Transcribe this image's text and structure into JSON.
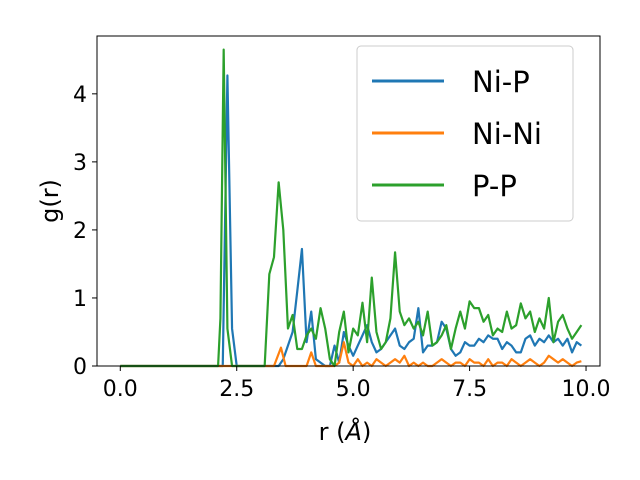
{
  "chart_data": {
    "type": "line",
    "xlabel": "r (",
    "xlabel_unit": "Å",
    "xlabel_close": ")",
    "ylabel": "g(r)",
    "xlim": [
      -0.5,
      10.3
    ],
    "ylim": [
      0,
      4.85
    ],
    "xticks": [
      0.0,
      2.5,
      5.0,
      7.5,
      10.0
    ],
    "xtick_labels": [
      "0.0",
      "2.5",
      "5.0",
      "7.5",
      "10.0"
    ],
    "yticks": [
      0,
      1,
      2,
      3,
      4
    ],
    "ytick_labels": [
      "0",
      "1",
      "2",
      "3",
      "4"
    ],
    "grid": false,
    "legend_position": "top-right",
    "series": [
      {
        "name": "Ni-P",
        "color": "#1f77b4",
        "x": [
          0,
          2.1,
          2.2,
          2.3,
          2.4,
          2.5,
          2.6,
          3.2,
          3.3,
          3.4,
          3.5,
          3.6,
          3.7,
          3.8,
          3.9,
          4.0,
          4.1,
          4.2,
          4.3,
          4.4,
          4.5,
          4.6,
          4.7,
          4.8,
          4.9,
          5.0,
          5.1,
          5.2,
          5.3,
          5.4,
          5.5,
          5.6,
          5.7,
          5.8,
          5.9,
          6.0,
          6.1,
          6.2,
          6.3,
          6.4,
          6.5,
          6.6,
          6.7,
          6.8,
          6.9,
          7.0,
          7.1,
          7.2,
          7.3,
          7.4,
          7.5,
          7.6,
          7.7,
          7.8,
          7.9,
          8.0,
          8.1,
          8.2,
          8.3,
          8.4,
          8.5,
          8.6,
          8.7,
          8.8,
          8.9,
          9.0,
          9.1,
          9.2,
          9.3,
          9.4,
          9.5,
          9.6,
          9.7,
          9.8,
          9.9
        ],
        "y": [
          0,
          0,
          0,
          4.27,
          0.55,
          0,
          0,
          0,
          0,
          0,
          0.1,
          0.3,
          0.5,
          1.1,
          1.72,
          0.35,
          0.8,
          0.1,
          0.05,
          0,
          0,
          0.3,
          0.05,
          0.5,
          0.3,
          0.15,
          0.3,
          0.45,
          0.6,
          0.35,
          0.2,
          0.25,
          0.35,
          0.45,
          0.55,
          0.3,
          0.25,
          0.35,
          0.4,
          0.85,
          0.2,
          0.3,
          0.3,
          0.35,
          0.65,
          0.55,
          0.25,
          0.15,
          0.2,
          0.35,
          0.3,
          0.3,
          0.4,
          0.35,
          0.45,
          0.4,
          0.4,
          0.25,
          0.35,
          0.3,
          0.2,
          0.2,
          0.4,
          0.45,
          0.3,
          0.4,
          0.35,
          0.45,
          0.35,
          0.4,
          0.3,
          0.4,
          0.2,
          0.35,
          0.3
        ]
      },
      {
        "name": "Ni-Ni",
        "color": "#ff7f0e",
        "x": [
          0,
          3.3,
          3.45,
          3.55,
          3.7,
          3.9,
          4.0,
          4.1,
          4.2,
          4.3,
          4.4,
          4.5,
          4.6,
          4.7,
          4.8,
          4.9,
          5.0,
          5.1,
          5.2,
          5.3,
          5.4,
          5.5,
          5.6,
          5.7,
          5.8,
          5.9,
          6.0,
          6.1,
          6.2,
          6.3,
          6.4,
          6.5,
          6.6,
          6.7,
          6.8,
          6.9,
          7.0,
          7.1,
          7.2,
          7.3,
          7.4,
          7.5,
          7.6,
          7.7,
          7.8,
          7.9,
          8.0,
          8.1,
          8.2,
          8.3,
          8.4,
          8.5,
          8.6,
          8.7,
          8.8,
          8.9,
          9.0,
          9.1,
          9.2,
          9.3,
          9.4,
          9.5,
          9.6,
          9.7,
          9.8,
          9.9
        ],
        "y": [
          0,
          0,
          0.27,
          0,
          0,
          0,
          0,
          0.2,
          0,
          0,
          0,
          0,
          0,
          0.05,
          0.35,
          0.05,
          0,
          0.1,
          0,
          0.05,
          0,
          0.1,
          0.05,
          0,
          0.05,
          0.1,
          0.05,
          0.15,
          0,
          0.05,
          0,
          0.05,
          0,
          0,
          0.05,
          0.1,
          0.05,
          0,
          0.05,
          0.05,
          0,
          0.1,
          0.05,
          0.05,
          0,
          0.1,
          0,
          0.05,
          0.05,
          0,
          0.1,
          0.05,
          0,
          0.05,
          0.1,
          0.05,
          0,
          0.05,
          0.15,
          0.1,
          0.05,
          0.1,
          0.05,
          0,
          0.05,
          0.07
        ]
      },
      {
        "name": "P-P",
        "color": "#2ca02c",
        "x": [
          0,
          2.1,
          2.15,
          2.22,
          2.3,
          2.4,
          2.5,
          3.0,
          3.1,
          3.2,
          3.3,
          3.4,
          3.5,
          3.6,
          3.7,
          3.8,
          3.9,
          4.0,
          4.1,
          4.2,
          4.3,
          4.4,
          4.5,
          4.6,
          4.7,
          4.8,
          4.9,
          5.0,
          5.1,
          5.2,
          5.3,
          5.4,
          5.5,
          5.6,
          5.7,
          5.8,
          5.9,
          6.0,
          6.1,
          6.2,
          6.3,
          6.4,
          6.5,
          6.6,
          6.7,
          6.8,
          6.9,
          7.0,
          7.1,
          7.2,
          7.3,
          7.4,
          7.5,
          7.6,
          7.7,
          7.8,
          7.9,
          8.0,
          8.1,
          8.2,
          8.3,
          8.4,
          8.5,
          8.6,
          8.7,
          8.8,
          8.9,
          9.0,
          9.1,
          9.2,
          9.3,
          9.4,
          9.5,
          9.6,
          9.7,
          9.8,
          9.9
        ],
        "y": [
          0,
          0,
          0.7,
          4.65,
          0.55,
          0,
          0,
          0,
          0,
          1.35,
          1.6,
          2.7,
          2.0,
          0.55,
          0.75,
          0.25,
          0.25,
          0.45,
          0.55,
          0.4,
          0.85,
          0.55,
          0.1,
          0,
          0.5,
          0.8,
          0.2,
          0.55,
          0.45,
          0.93,
          0.35,
          1.3,
          0.5,
          0.25,
          0.35,
          0.7,
          1.67,
          0.8,
          0.6,
          0.7,
          0.55,
          0.65,
          0.45,
          0.8,
          0.3,
          0.35,
          0.45,
          0.6,
          0.25,
          0.55,
          0.8,
          0.55,
          0.95,
          0.85,
          0.85,
          0.65,
          0.75,
          0.45,
          0.55,
          0.5,
          0.8,
          0.55,
          0.6,
          0.92,
          0.7,
          0.8,
          0.5,
          0.7,
          0.55,
          1.0,
          0.35,
          0.65,
          0.75,
          0.55,
          0.4,
          0.5,
          0.6
        ]
      }
    ]
  }
}
